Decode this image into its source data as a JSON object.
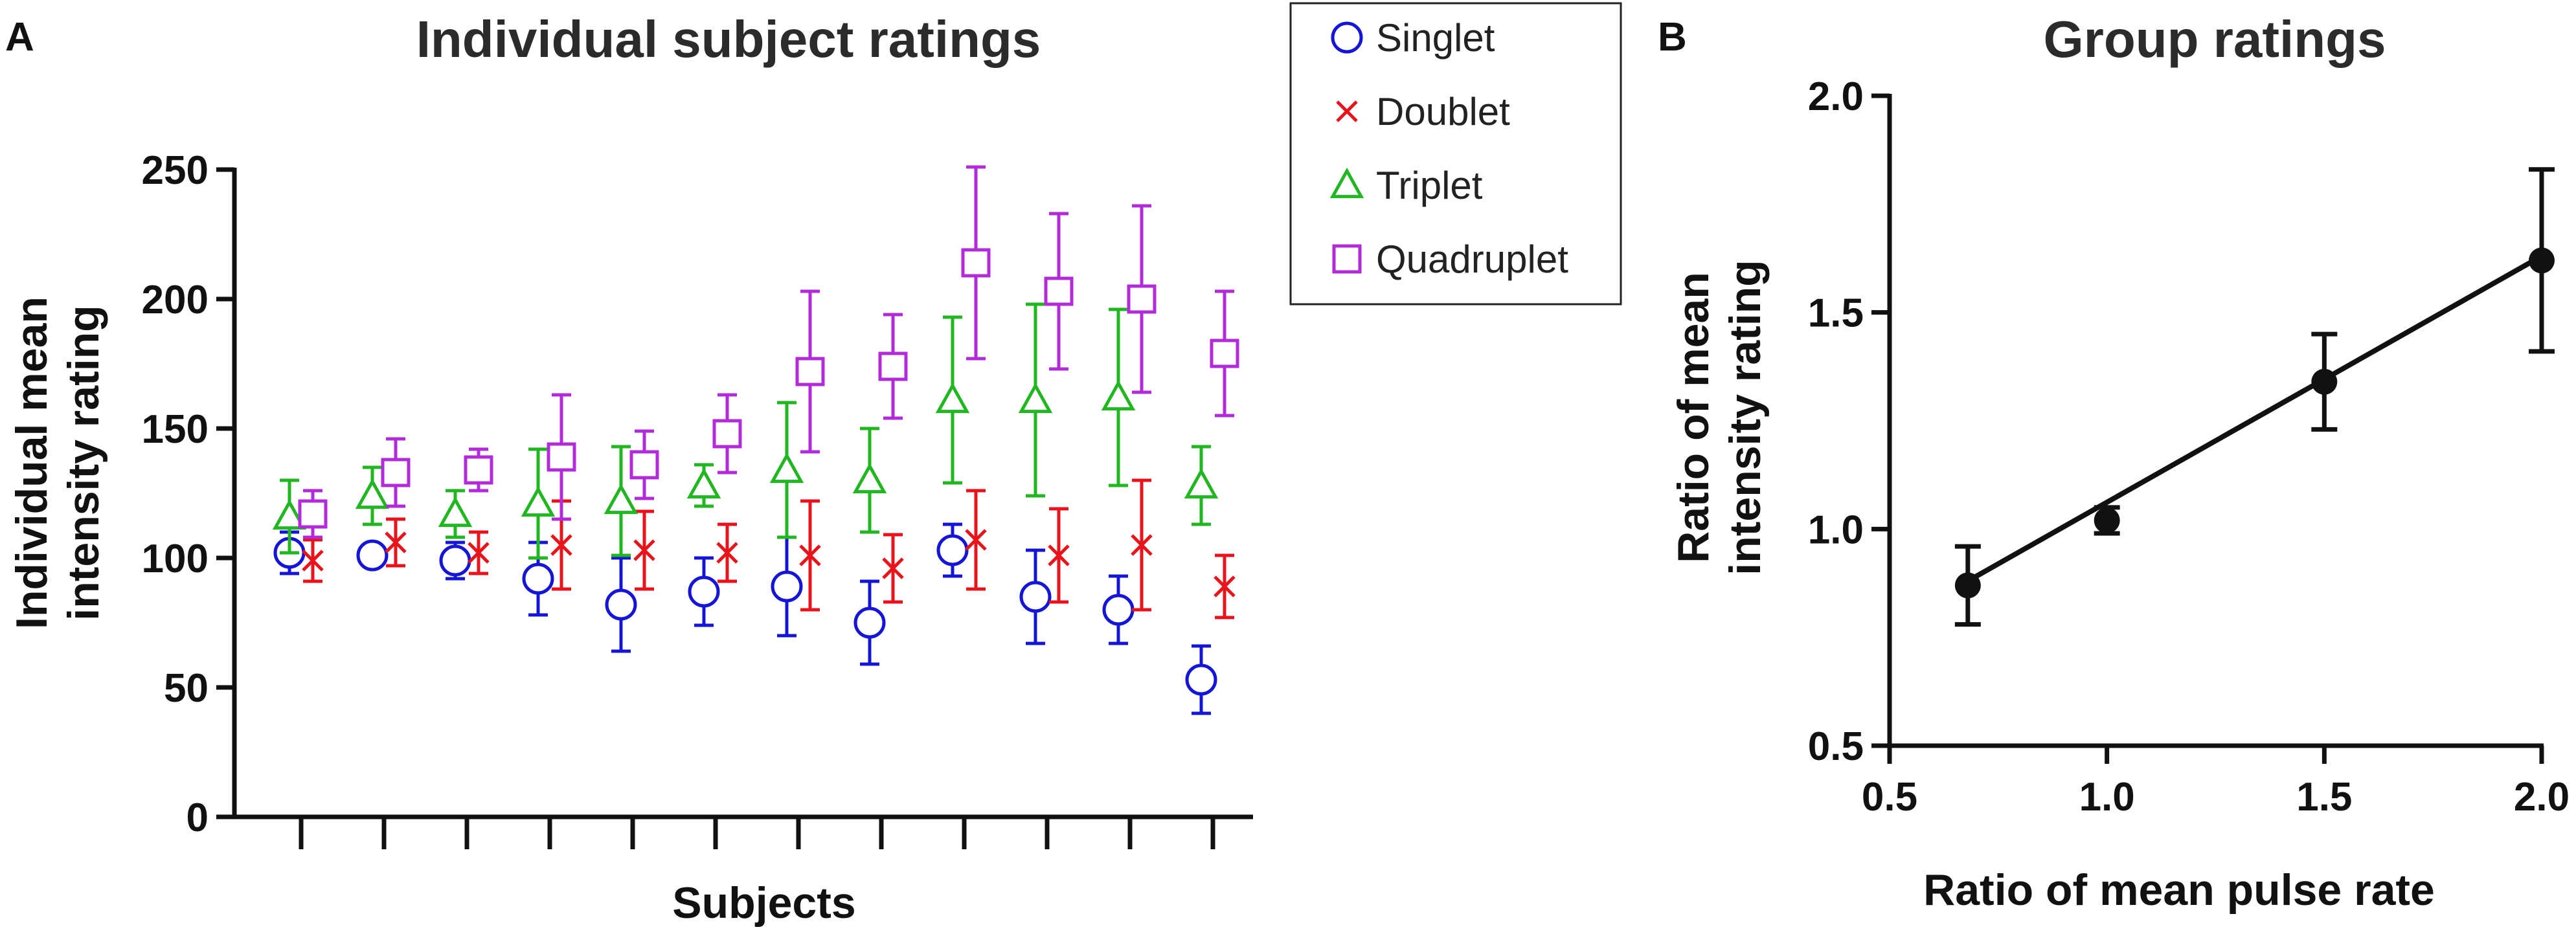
{
  "chart_data": [
    {
      "panel": "A",
      "type": "scatter",
      "title": "Individual subject ratings",
      "xlabel": "Subjects",
      "ylabel": [
        "Individual mean",
        "intensity rating"
      ],
      "ylim": [
        0,
        250
      ],
      "yticks": [
        0,
        50,
        100,
        150,
        200,
        250
      ],
      "subjects": 12,
      "series": [
        {
          "name": "Singlet",
          "marker": "circle",
          "color": "#1515d6",
          "values": [
            102,
            101,
            99,
            92,
            82,
            87,
            89,
            75,
            103,
            85,
            80,
            53
          ],
          "err": [
            8,
            4,
            7,
            14,
            18,
            13,
            19,
            16,
            10,
            18,
            13,
            13
          ]
        },
        {
          "name": "Doublet",
          "marker": "x",
          "color": "#e8141c",
          "values": [
            99,
            106,
            102,
            105,
            103,
            102,
            101,
            96,
            107,
            101,
            105,
            89
          ],
          "err": [
            8,
            9,
            8,
            17,
            15,
            11,
            21,
            13,
            19,
            18,
            25,
            12
          ]
        },
        {
          "name": "Triplet",
          "marker": "triangle",
          "color": "#22b622",
          "values": [
            116,
            124,
            117,
            121,
            122,
            128,
            134,
            130,
            161,
            161,
            162,
            128
          ],
          "err": [
            14,
            11,
            9,
            21,
            21,
            8,
            26,
            20,
            32,
            37,
            34,
            15
          ]
        },
        {
          "name": "Quadruplet",
          "marker": "square",
          "color": "#b12bdb",
          "values": [
            117,
            133,
            134,
            139,
            136,
            148,
            172,
            174,
            214,
            203,
            200,
            179
          ],
          "err": [
            9,
            13,
            8,
            24,
            13,
            15,
            31,
            20,
            37,
            30,
            36,
            24
          ]
        }
      ]
    },
    {
      "panel": "B",
      "type": "line",
      "title": "Group ratings",
      "xlabel": "Ratio of mean pulse rate",
      "ylabel": [
        "Ratio of mean",
        "intensity rating"
      ],
      "xlim": [
        0.5,
        2.0
      ],
      "ylim": [
        0.5,
        2.0
      ],
      "xticks": [
        "0.5",
        "1.0",
        "1.5",
        "2.0"
      ],
      "yticks": [
        "0.5",
        "1.0",
        "1.5",
        "2.0"
      ],
      "points": {
        "x": [
          0.68,
          1.0,
          1.5,
          2.0
        ],
        "y": [
          0.87,
          1.02,
          1.34,
          1.62
        ],
        "err": [
          0.09,
          0.03,
          0.11,
          0.21
        ]
      },
      "fit": {
        "x": [
          0.68,
          2.0
        ],
        "y": [
          0.88,
          1.63
        ]
      },
      "color": "#111111"
    }
  ]
}
